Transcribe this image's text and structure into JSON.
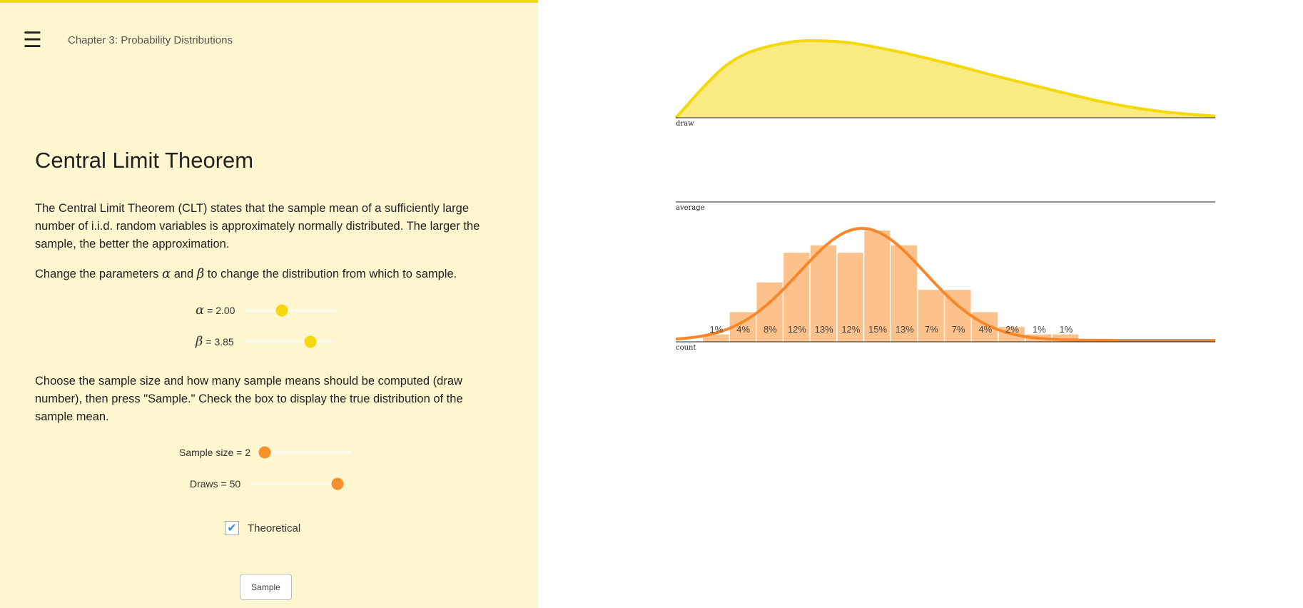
{
  "header": {
    "menu_icon": "hamburger-icon",
    "chapter": "Chapter 3: Probability Distributions"
  },
  "main": {
    "title": "Central Limit Theorem",
    "p1": "The Central Limit Theorem (CLT) states that the sample mean of a sufficiently large number of i.i.d. random variables is approximately normally distributed. The larger the sample, the better the approximation.",
    "p2_pre": "Change the parameters ",
    "p2_mid": " and ",
    "p2_post": " to change the distribution from which to sample.",
    "alpha_symbol": "α",
    "beta_symbol": "β",
    "p3": "Choose the sample size and how many sample means should be computed (draw number), then press \"Sample.\" Check the box to display the true distribution of the sample mean."
  },
  "controls": {
    "alpha": {
      "label": "= 2.00",
      "value": 2.0,
      "fraction": 0.4
    },
    "beta": {
      "label": "= 3.85",
      "value": 3.85,
      "fraction": 0.73
    },
    "sample_size": {
      "label": "Sample size = 2",
      "value": 2,
      "fraction": 0.05
    },
    "draws": {
      "label": "Draws = 50",
      "value": 50,
      "fraction": 0.95
    },
    "theoretical": {
      "label": "Theoretical",
      "checked": true,
      "check_icon": "checkmark-icon"
    },
    "sample_button": "Sample"
  },
  "colors": {
    "accent_yellow": "#f4d80b",
    "accent_orange": "#f7902a",
    "panel_bg": "#fdf6cf",
    "bar": "#fdc18b"
  },
  "chart_data": [
    {
      "type": "area",
      "xlabel": "draw",
      "x": [
        0,
        0.1,
        0.2,
        0.3,
        0.4,
        0.5,
        0.6,
        0.7,
        0.8,
        0.9,
        1.0
      ],
      "values": [
        0,
        0.7,
        0.95,
        0.97,
        0.86,
        0.7,
        0.52,
        0.35,
        0.19,
        0.08,
        0.02
      ]
    },
    {
      "type": "line",
      "xlabel": "average"
    },
    {
      "type": "bar",
      "xlabel": "count",
      "labels": [
        "1%",
        "4%",
        "8%",
        "12%",
        "13%",
        "12%",
        "15%",
        "13%",
        "7%",
        "7%",
        "4%",
        "2%",
        "1%",
        "1%"
      ],
      "values": [
        1,
        4,
        8,
        12,
        13,
        12,
        15,
        13,
        7,
        7,
        4,
        2,
        1,
        1
      ],
      "theoretical_curve": true
    }
  ]
}
